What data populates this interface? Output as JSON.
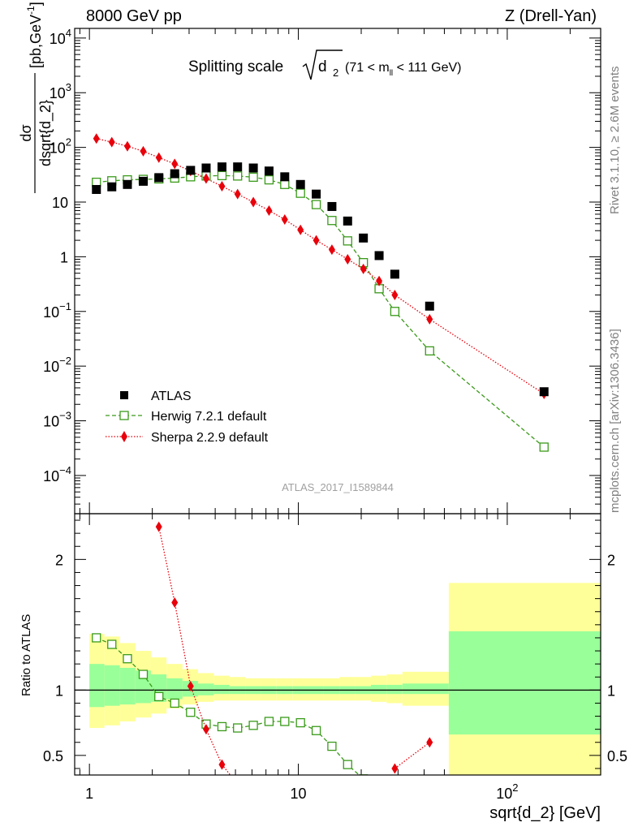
{
  "header": {
    "left_label": "8000 GeV pp",
    "right_label": "Z (Drell-Yan)"
  },
  "side_labels": {
    "rivet": "Rivet 3.1.10, ≥ 2.6M events",
    "mcplots": "mcplots.cern.ch [arXiv:1306.3436]"
  },
  "chart_data": [
    {
      "type": "scatter",
      "title": "Splitting scale",
      "title_symbol": "d",
      "title_symbol_sub": "2",
      "title_cut": "(71 < m",
      "title_cut_sub": "ll",
      "title_cut_end": " < 111 GeV)",
      "ylabel_num": "dσ",
      "ylabel_den": "dsqrt{d_2}",
      "ylabel_unit": "[pb,GeV",
      "ylabel_unit_sup": "-1",
      "ylabel_unit_end": "]",
      "xscale": "log",
      "yscale": "log",
      "xlim": [
        0.85,
        280
      ],
      "ylim": [
        2e-05,
        15000
      ],
      "yticks": [
        {
          "v": 0.0001,
          "base": "10",
          "exp": "−4"
        },
        {
          "v": 0.001,
          "base": "10",
          "exp": "−3"
        },
        {
          "v": 0.01,
          "base": "10",
          "exp": "−2"
        },
        {
          "v": 0.1,
          "base": "10",
          "exp": "−1"
        },
        {
          "v": 1,
          "base": "1",
          "exp": ""
        },
        {
          "v": 10,
          "base": "10",
          "exp": ""
        },
        {
          "v": 100,
          "base": "10",
          "exp": "2"
        },
        {
          "v": 1000,
          "base": "10",
          "exp": "3"
        },
        {
          "v": 10000,
          "base": "10",
          "exp": "4"
        }
      ],
      "legend_position": "bottom-left",
      "watermark": "ATLAS_2017_I1589844",
      "series": [
        {
          "name": "ATLAS",
          "color": "#000000",
          "marker": "filled-square",
          "x": [
            1.08,
            1.28,
            1.52,
            1.81,
            2.15,
            2.56,
            3.05,
            3.62,
            4.31,
            5.12,
            6.09,
            7.24,
            8.61,
            10.24,
            12.18,
            14.48,
            17.22,
            20.48,
            24.36,
            28.96,
            42.5,
            150
          ],
          "y": [
            17,
            19,
            21,
            24,
            28,
            33,
            38,
            42,
            44,
            44,
            42,
            37,
            29,
            21,
            14,
            8.3,
            4.5,
            2.2,
            1.05,
            0.48,
            0.125,
            0.0034
          ]
        },
        {
          "name": "Herwig 7.2.1 default",
          "color": "#3a9a1a",
          "marker": "open-square",
          "line": "dashed",
          "x": [
            1.08,
            1.28,
            1.52,
            1.81,
            2.15,
            2.56,
            3.05,
            3.62,
            4.31,
            5.12,
            6.09,
            7.24,
            8.61,
            10.24,
            12.18,
            14.48,
            17.22,
            20.48,
            24.36,
            28.96,
            42.5,
            150
          ],
          "y": [
            23,
            24.5,
            25.5,
            26,
            26.5,
            27.5,
            29,
            30,
            30.5,
            30,
            28.5,
            25.5,
            21,
            14.5,
            9,
            4.6,
            1.95,
            0.78,
            0.26,
            0.1,
            0.019,
            0.00033
          ]
        },
        {
          "name": "Sherpa 2.2.9 default",
          "color": "#e8000b",
          "marker": "filled-diamond",
          "line": "dotted",
          "x": [
            1.08,
            1.28,
            1.52,
            1.81,
            2.15,
            2.56,
            3.05,
            3.62,
            4.31,
            5.12,
            6.09,
            7.24,
            8.61,
            10.24,
            12.18,
            14.48,
            17.22,
            20.48,
            24.36,
            28.96,
            42.5,
            150
          ],
          "y": [
            145,
            125,
            105,
            85,
            65,
            50,
            37,
            27,
            19.5,
            14,
            10,
            7,
            4.8,
            3.1,
            2,
            1.35,
            0.9,
            0.6,
            0.36,
            0.2,
            0.072,
            0.0031
          ]
        }
      ]
    },
    {
      "type": "scatter",
      "ylabel": "Ratio to ATLAS",
      "xlabel": "sqrt{d_2} [GeV]",
      "xscale": "log",
      "xlim": [
        0.85,
        280
      ],
      "ylim": [
        0.35,
        2.35
      ],
      "yticks": [
        0.5,
        1,
        2
      ],
      "xticks": [
        {
          "v": 1,
          "base": "1",
          "exp": ""
        },
        {
          "v": 10,
          "base": "10",
          "exp": ""
        },
        {
          "v": 100,
          "base": "10",
          "exp": "2"
        }
      ],
      "reference_line": 1,
      "bands": {
        "edges": [
          1,
          1.18,
          1.4,
          1.66,
          1.97,
          2.34,
          2.79,
          3.31,
          3.94,
          4.68,
          5.57,
          6.62,
          7.87,
          9.37,
          11.13,
          13.24,
          15.74,
          18.72,
          22.27,
          26.48,
          31.5,
          52.5,
          280
        ],
        "stat_low": [
          0.87,
          0.88,
          0.89,
          0.9,
          0.91,
          0.93,
          0.95,
          0.96,
          0.97,
          0.97,
          0.97,
          0.97,
          0.97,
          0.97,
          0.97,
          0.97,
          0.97,
          0.97,
          0.97,
          0.97,
          0.97,
          0.66
        ],
        "stat_high": [
          1.2,
          1.19,
          1.17,
          1.15,
          1.12,
          1.09,
          1.07,
          1.05,
          1.04,
          1.03,
          1.03,
          1.03,
          1.03,
          1.03,
          1.03,
          1.03,
          1.03,
          1.03,
          1.04,
          1.04,
          1.05,
          1.45
        ],
        "total_low": [
          0.71,
          0.73,
          0.76,
          0.79,
          0.82,
          0.86,
          0.89,
          0.91,
          0.92,
          0.92,
          0.92,
          0.92,
          0.92,
          0.92,
          0.92,
          0.92,
          0.92,
          0.92,
          0.91,
          0.9,
          0.88,
          0.33
        ],
        "total_high": [
          1.43,
          1.41,
          1.36,
          1.3,
          1.25,
          1.2,
          1.16,
          1.13,
          1.11,
          1.1,
          1.09,
          1.09,
          1.09,
          1.09,
          1.09,
          1.09,
          1.1,
          1.1,
          1.11,
          1.12,
          1.14,
          1.82
        ],
        "stat_color": "#99ff99",
        "total_color": "#ffff99"
      },
      "series": [
        {
          "name": "Herwig 7.2.1 default",
          "color": "#3a9a1a",
          "marker": "open-square",
          "line": "dashed",
          "x": [
            1.08,
            1.28,
            1.52,
            1.81,
            2.15,
            2.56,
            3.05,
            3.62,
            4.31,
            5.12,
            6.09,
            7.24,
            8.61,
            10.24,
            12.18,
            14.48,
            17.22,
            20.48
          ],
          "y": [
            1.4,
            1.35,
            1.24,
            1.12,
            0.95,
            0.9,
            0.83,
            0.74,
            0.72,
            0.71,
            0.73,
            0.76,
            0.76,
            0.75,
            0.69,
            0.57,
            0.43,
            0.32
          ]
        },
        {
          "name": "Sherpa 2.2.9 default",
          "color": "#e8000b",
          "marker": "filled-diamond",
          "line": "dotted",
          "x": [
            2.15,
            2.56,
            3.05,
            3.62,
            4.31,
            5.0,
            28.96,
            42.5
          ],
          "y": [
            2.25,
            1.67,
            1.03,
            0.7,
            0.43,
            0.3,
            0.4,
            0.6
          ]
        }
      ]
    }
  ]
}
